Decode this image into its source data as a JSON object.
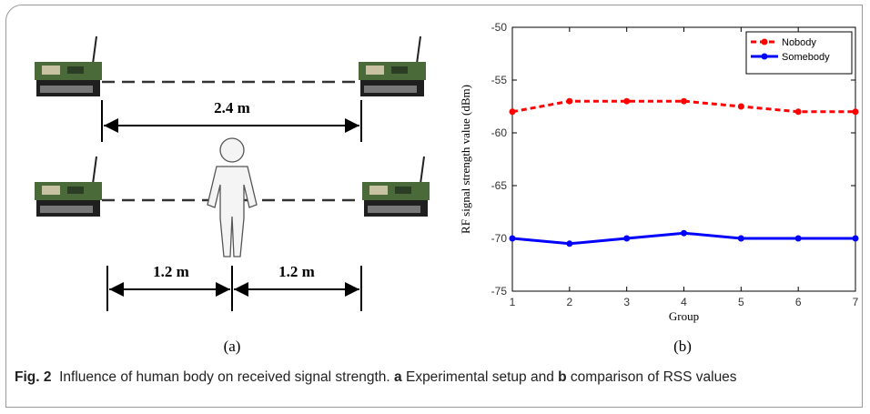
{
  "diagram": {
    "distance_top": "2.4 m",
    "distance_left": "1.2 m",
    "distance_right": "1.2 m",
    "label_a": "(a)",
    "label_b": "(b)"
  },
  "chart_data": {
    "type": "line",
    "x": [
      1,
      2,
      3,
      4,
      5,
      6,
      7
    ],
    "xlim": [
      1,
      7
    ],
    "xticks": [
      1,
      2,
      3,
      4,
      5,
      6,
      7
    ],
    "ylim": [
      -75,
      -50
    ],
    "yticks": [
      -75,
      -70,
      -65,
      -60,
      -55,
      -50
    ],
    "x_label": "Group",
    "y_label": "RF signal strength value (dBm)",
    "legend": "upper-right",
    "series": [
      {
        "name": "Nobody",
        "color": "#ff0000",
        "linestyle": "dashed",
        "values": [
          -58,
          -57,
          -57,
          -57,
          -57.5,
          -58,
          -58
        ]
      },
      {
        "name": "Somebody",
        "color": "#0000ff",
        "linestyle": "solid",
        "values": [
          -70,
          -70.5,
          -70,
          -69.5,
          -70,
          -70,
          -70
        ]
      }
    ]
  },
  "caption": {
    "label": "Fig. 2",
    "text1": "Influence of human body on received signal strength. ",
    "a": "a",
    "text2": " Experimental setup and ",
    "b": "b",
    "text3": " comparison of RSS values"
  }
}
